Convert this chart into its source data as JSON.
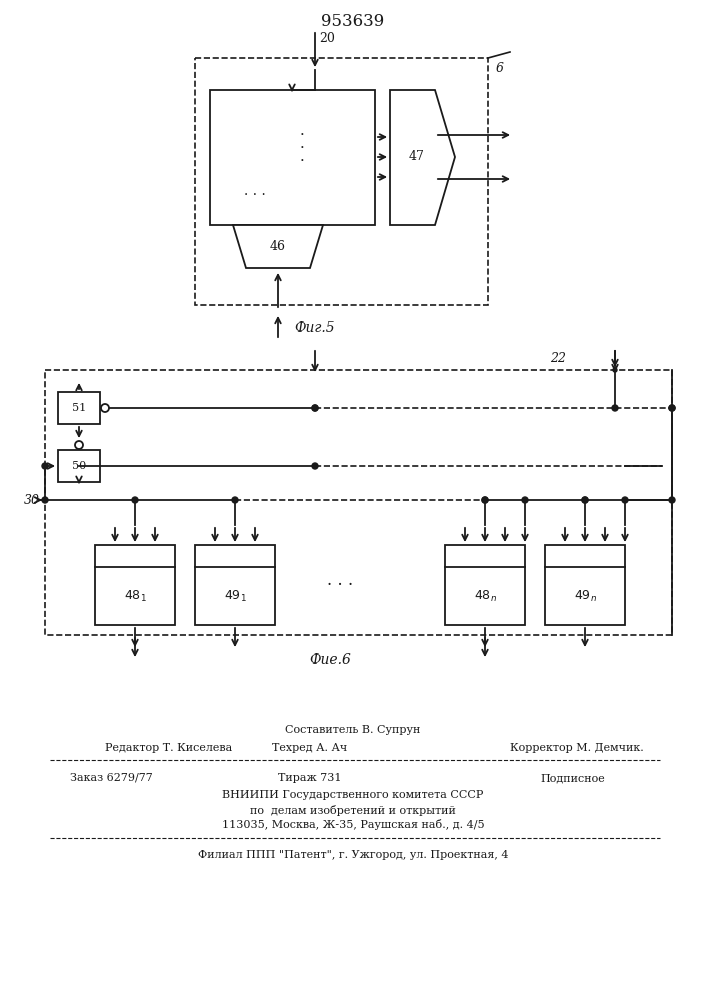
{
  "title": "953639",
  "fig5_label": "Фиг.5",
  "fig6_label": "Фие.6",
  "bg_color": "#ffffff",
  "line_color": "#1a1a1a",
  "text_color": "#1a1a1a",
  "footer_sestavitel": "Составитель В. Супрун",
  "footer_redaktor": "Редактор Т. Киселева",
  "footer_tehred": "Техред А. Ач",
  "footer_korrektor": "Корректор М. Демчик.",
  "footer_zakaz": "Заказ 6279/77",
  "footer_tirazh": "Тираж 731",
  "footer_podpisnoe": "Подписное",
  "footer_vniipи": "ВНИИПИ Государственного комитета СССР",
  "footer_po": "по  делам изобретений и открытий",
  "footer_addr": "113035, Москва, Ж-35, Раушская наб., д. 4/5",
  "footer_filial": "Филиал ППП \"Патент\", г. Ужгород, ул. Проектная, 4"
}
